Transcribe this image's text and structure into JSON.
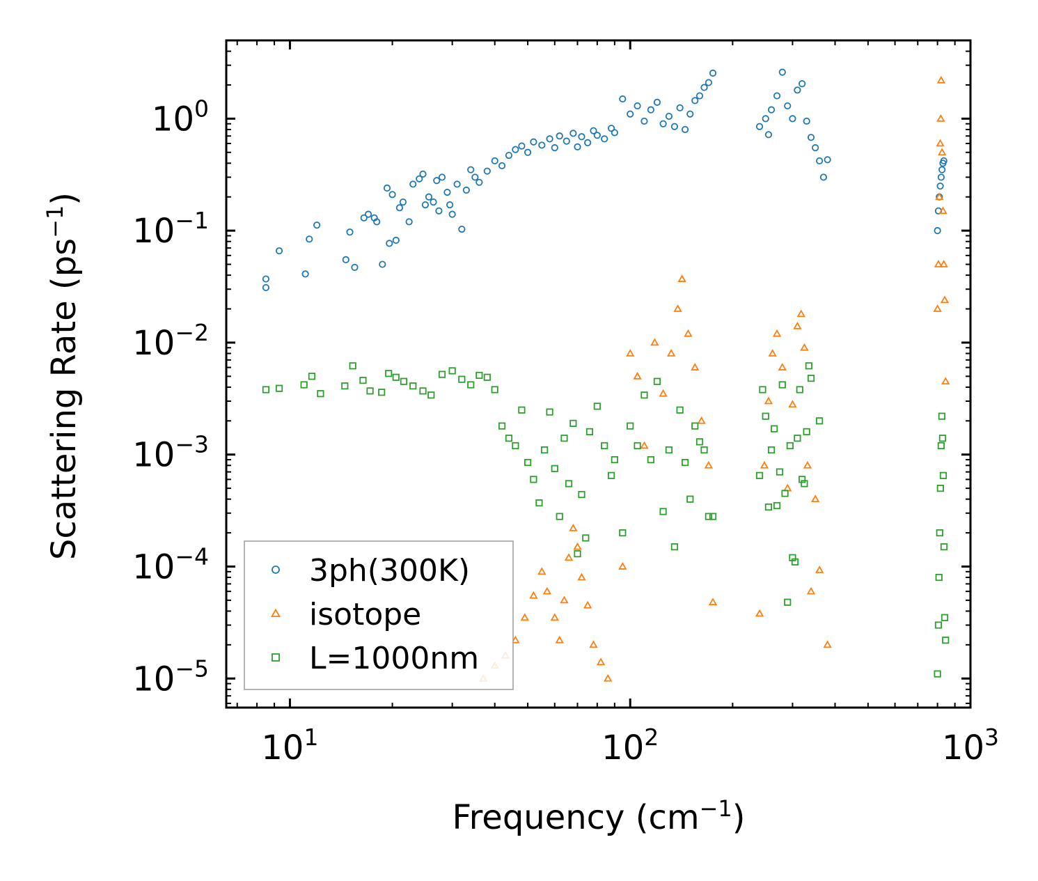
{
  "chart_data": {
    "type": "scatter",
    "title": "",
    "xlabel": "Frequency (cm",
    "xlabel_sup": "−1",
    "xlabel_end": ")",
    "ylabel": "Scattering Rate (ps",
    "ylabel_sup": "−1",
    "ylabel_end": ")",
    "xscale": "log",
    "yscale": "log",
    "xlim": [
      6.5,
      1000
    ],
    "ylim": [
      5.5e-06,
      5
    ],
    "x_ticks": [
      {
        "value": 10,
        "base": "10",
        "exp": "1"
      },
      {
        "value": 100,
        "base": "10",
        "exp": "2"
      },
      {
        "value": 1000,
        "base": "10",
        "exp": "3"
      }
    ],
    "y_ticks": [
      {
        "value": 1,
        "base": "10",
        "exp": "0"
      },
      {
        "value": 0.1,
        "base": "10",
        "exp": "−1"
      },
      {
        "value": 0.01,
        "base": "10",
        "exp": "−2"
      },
      {
        "value": 0.001,
        "base": "10",
        "exp": "−3"
      },
      {
        "value": 0.0001,
        "base": "10",
        "exp": "−4"
      },
      {
        "value": 1e-05,
        "base": "10",
        "exp": "−5"
      }
    ],
    "legend_position": "lower-left",
    "series": [
      {
        "name": "3ph(300K)",
        "marker": "circle",
        "color": "#1f77b4",
        "points": [
          [
            8.5,
            0.031
          ],
          [
            8.5,
            0.037
          ],
          [
            9.3,
            0.066
          ],
          [
            11.1,
            0.041
          ],
          [
            11.4,
            0.084
          ],
          [
            12,
            0.112
          ],
          [
            14.6,
            0.055
          ],
          [
            15,
            0.097
          ],
          [
            15.5,
            0.047
          ],
          [
            16.5,
            0.13
          ],
          [
            17,
            0.14
          ],
          [
            17.7,
            0.13
          ],
          [
            18,
            0.12
          ],
          [
            18.7,
            0.05
          ],
          [
            19.3,
            0.24
          ],
          [
            19.6,
            0.077
          ],
          [
            20,
            0.21
          ],
          [
            20.5,
            0.082
          ],
          [
            21,
            0.16
          ],
          [
            21.5,
            0.18
          ],
          [
            22.4,
            0.12
          ],
          [
            23,
            0.26
          ],
          [
            24,
            0.29
          ],
          [
            24.6,
            0.32
          ],
          [
            25,
            0.17
          ],
          [
            25.6,
            0.2
          ],
          [
            26.4,
            0.18
          ],
          [
            27,
            0.28
          ],
          [
            27.4,
            0.15
          ],
          [
            28,
            0.3
          ],
          [
            29,
            0.22
          ],
          [
            29.5,
            0.17
          ],
          [
            30,
            0.14
          ],
          [
            31,
            0.26
          ],
          [
            32,
            0.103
          ],
          [
            33,
            0.23
          ],
          [
            34,
            0.35
          ],
          [
            35,
            0.3
          ],
          [
            36,
            0.27
          ],
          [
            38,
            0.34
          ],
          [
            40,
            0.42
          ],
          [
            42,
            0.38
          ],
          [
            44,
            0.47
          ],
          [
            46,
            0.53
          ],
          [
            48,
            0.57
          ],
          [
            50,
            0.5
          ],
          [
            52,
            0.62
          ],
          [
            55,
            0.58
          ],
          [
            58,
            0.66
          ],
          [
            60,
            0.55
          ],
          [
            62,
            0.7
          ],
          [
            65,
            0.63
          ],
          [
            68,
            0.74
          ],
          [
            70,
            0.56
          ],
          [
            72,
            0.69
          ],
          [
            75,
            0.61
          ],
          [
            78,
            0.78
          ],
          [
            80,
            0.71
          ],
          [
            84,
            0.66
          ],
          [
            88,
            0.82
          ],
          [
            90,
            0.75
          ],
          [
            95,
            1.5
          ],
          [
            100,
            1.1
          ],
          [
            105,
            1.3
          ],
          [
            110,
            0.95
          ],
          [
            115,
            1.2
          ],
          [
            120,
            1.4
          ],
          [
            125,
            0.9
          ],
          [
            130,
            1.05
          ],
          [
            135,
            0.85
          ],
          [
            140,
            1.25
          ],
          [
            145,
            0.8
          ],
          [
            150,
            1.1
          ],
          [
            155,
            1.45
          ],
          [
            160,
            1.6
          ],
          [
            165,
            1.9
          ],
          [
            170,
            2.1
          ],
          [
            175,
            2.55
          ],
          [
            240,
            0.85
          ],
          [
            250,
            1.0
          ],
          [
            255,
            0.72
          ],
          [
            260,
            1.2
          ],
          [
            270,
            1.6
          ],
          [
            280,
            2.6
          ],
          [
            290,
            1.3
          ],
          [
            300,
            1.0
          ],
          [
            310,
            1.8
          ],
          [
            320,
            2.05
          ],
          [
            330,
            0.95
          ],
          [
            340,
            0.68
          ],
          [
            350,
            0.55
          ],
          [
            360,
            0.42
          ],
          [
            370,
            0.3
          ],
          [
            380,
            0.43
          ],
          [
            800,
            0.1
          ],
          [
            805,
            0.15
          ],
          [
            810,
            0.2
          ],
          [
            815,
            0.25
          ],
          [
            820,
            0.3
          ],
          [
            825,
            0.35
          ],
          [
            830,
            0.4
          ],
          [
            835,
            0.42
          ]
        ]
      },
      {
        "name": "isotope",
        "marker": "triangle",
        "color": "#ff7f0e",
        "points": [
          [
            37,
            1e-05
          ],
          [
            40,
            1.3e-05
          ],
          [
            43,
            1.6e-05
          ],
          [
            46,
            2.2e-05
          ],
          [
            49,
            3.5e-05
          ],
          [
            52,
            5.5e-05
          ],
          [
            55,
            9e-05
          ],
          [
            57,
            6e-05
          ],
          [
            60,
            3.5e-05
          ],
          [
            62,
            2.2e-05
          ],
          [
            64,
            5e-05
          ],
          [
            66,
            0.00012
          ],
          [
            68,
            0.00022
          ],
          [
            70,
            0.00015
          ],
          [
            72,
            8e-05
          ],
          [
            75,
            4.5e-05
          ],
          [
            78,
            2e-05
          ],
          [
            82,
            1.4e-05
          ],
          [
            86,
            1e-05
          ],
          [
            95,
            0.0001
          ],
          [
            100,
            0.008
          ],
          [
            105,
            0.005
          ],
          [
            110,
            0.0012
          ],
          [
            118,
            0.01
          ],
          [
            125,
            0.0035
          ],
          [
            132,
            0.008
          ],
          [
            138,
            0.02
          ],
          [
            142,
            0.037
          ],
          [
            148,
            0.012
          ],
          [
            155,
            0.006
          ],
          [
            162,
            0.002
          ],
          [
            170,
            0.0008
          ],
          [
            175,
            4.8e-05
          ],
          [
            240,
            3.8e-05
          ],
          [
            248,
            0.0008
          ],
          [
            255,
            0.003
          ],
          [
            262,
            0.008
          ],
          [
            270,
            0.012
          ],
          [
            280,
            0.006
          ],
          [
            290,
            0.0005
          ],
          [
            300,
            0.0028
          ],
          [
            310,
            0.014
          ],
          [
            318,
            0.018
          ],
          [
            325,
            0.009
          ],
          [
            332,
            0.0008
          ],
          [
            340,
            6e-05
          ],
          [
            350,
            0.0004
          ],
          [
            360,
            9.3e-05
          ],
          [
            380,
            2e-05
          ],
          [
            800,
            0.02
          ],
          [
            805,
            0.05
          ],
          [
            810,
            0.2
          ],
          [
            815,
            0.6
          ],
          [
            818,
            1.0
          ],
          [
            820,
            2.2
          ],
          [
            825,
            0.5
          ],
          [
            830,
            0.15
          ],
          [
            835,
            0.05
          ],
          [
            840,
            0.024
          ],
          [
            845,
            0.0045
          ]
        ]
      },
      {
        "name": "L=1000nm",
        "marker": "square",
        "color": "#2ca02c",
        "points": [
          [
            8.5,
            0.0038
          ],
          [
            9.3,
            0.0039
          ],
          [
            11,
            0.0042
          ],
          [
            11.6,
            0.005
          ],
          [
            12.3,
            0.0035
          ],
          [
            14.5,
            0.0041
          ],
          [
            15.3,
            0.0062
          ],
          [
            16.4,
            0.0046
          ],
          [
            17.2,
            0.0037
          ],
          [
            18.6,
            0.0036
          ],
          [
            19.5,
            0.0053
          ],
          [
            20.5,
            0.0049
          ],
          [
            21.6,
            0.0045
          ],
          [
            23,
            0.0041
          ],
          [
            24.6,
            0.0037
          ],
          [
            26,
            0.0034
          ],
          [
            28,
            0.0052
          ],
          [
            30,
            0.0056
          ],
          [
            32,
            0.0047
          ],
          [
            34,
            0.0042
          ],
          [
            36,
            0.0051
          ],
          [
            38,
            0.0049
          ],
          [
            40,
            0.0038
          ],
          [
            42,
            0.0018
          ],
          [
            44,
            0.0014
          ],
          [
            46,
            0.0012
          ],
          [
            48,
            0.0025
          ],
          [
            50,
            0.00085
          ],
          [
            52,
            0.0006
          ],
          [
            54,
            0.00037
          ],
          [
            56,
            0.0011
          ],
          [
            58,
            0.0024
          ],
          [
            60,
            0.00075
          ],
          [
            62,
            0.00028
          ],
          [
            64,
            0.0014
          ],
          [
            66,
            0.00055
          ],
          [
            68,
            0.0019
          ],
          [
            70,
            0.00013
          ],
          [
            72,
            0.00044
          ],
          [
            74,
            0.00018
          ],
          [
            76,
            0.0016
          ],
          [
            80,
            0.0027
          ],
          [
            84,
            0.0012
          ],
          [
            88,
            0.00065
          ],
          [
            90,
            0.0009
          ],
          [
            95,
            0.0002
          ],
          [
            100,
            0.0018
          ],
          [
            105,
            0.0012
          ],
          [
            110,
            0.0034
          ],
          [
            115,
            0.0009
          ],
          [
            120,
            0.0045
          ],
          [
            125,
            0.00031
          ],
          [
            130,
            0.0011
          ],
          [
            135,
            0.00015
          ],
          [
            140,
            0.0025
          ],
          [
            145,
            0.00085
          ],
          [
            150,
            0.0004
          ],
          [
            155,
            0.0018
          ],
          [
            160,
            0.0013
          ],
          [
            165,
            0.0011
          ],
          [
            170,
            0.00028
          ],
          [
            175,
            0.00028
          ],
          [
            240,
            0.00065
          ],
          [
            245,
            0.0038
          ],
          [
            250,
            0.0022
          ],
          [
            255,
            0.00034
          ],
          [
            260,
            0.0011
          ],
          [
            265,
            0.0017
          ],
          [
            270,
            0.00035
          ],
          [
            275,
            0.0007
          ],
          [
            280,
            0.0042
          ],
          [
            285,
            0.00045
          ],
          [
            290,
            4.8e-05
          ],
          [
            295,
            0.0012
          ],
          [
            300,
            0.00012
          ],
          [
            305,
            0.00011
          ],
          [
            310,
            0.0014
          ],
          [
            315,
            0.0038
          ],
          [
            320,
            0.0006
          ],
          [
            325,
            0.00055
          ],
          [
            330,
            0.0016
          ],
          [
            335,
            0.0062
          ],
          [
            340,
            0.0048
          ],
          [
            360,
            0.002
          ],
          [
            800,
            1.1e-05
          ],
          [
            805,
            3e-05
          ],
          [
            808,
            8e-05
          ],
          [
            812,
            0.0002
          ],
          [
            816,
            0.0005
          ],
          [
            820,
            0.0012
          ],
          [
            824,
            0.0022
          ],
          [
            828,
            0.0014
          ],
          [
            832,
            0.00065
          ],
          [
            836,
            0.00015
          ],
          [
            840,
            3.5e-05
          ],
          [
            845,
            2.2e-05
          ]
        ]
      }
    ]
  }
}
